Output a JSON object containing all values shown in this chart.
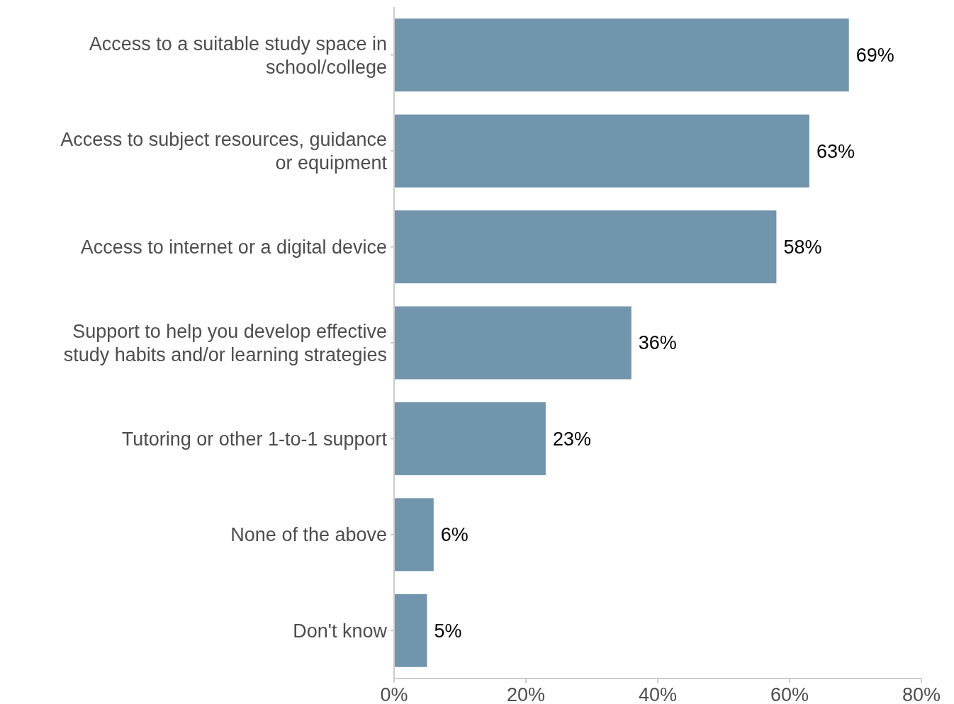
{
  "chart_data": {
    "type": "bar",
    "orientation": "horizontal",
    "categories": [
      "Access to a suitable study space in school/college",
      "Access to subject resources, guidance or equipment",
      "Access to internet or a digital device",
      "Support to help you develop effective study habits and/or learning strategies",
      "Tutoring or other 1-to-1 support",
      "None of the above",
      "Don't know"
    ],
    "values": [
      69,
      63,
      58,
      36,
      23,
      6,
      5
    ],
    "color": "#7195ad",
    "xlim": [
      0,
      80
    ],
    "xticks": [
      {
        "value": 0,
        "label": "0%"
      },
      {
        "value": 20,
        "label": "20%"
      },
      {
        "value": 40,
        "label": "40%"
      },
      {
        "value": 60,
        "label": "60%"
      },
      {
        "value": 80,
        "label": "80%"
      }
    ],
    "value_labels": [
      "69%",
      "63%",
      "58%",
      "36%",
      "23%",
      "6%",
      "5%"
    ],
    "grid": false
  }
}
